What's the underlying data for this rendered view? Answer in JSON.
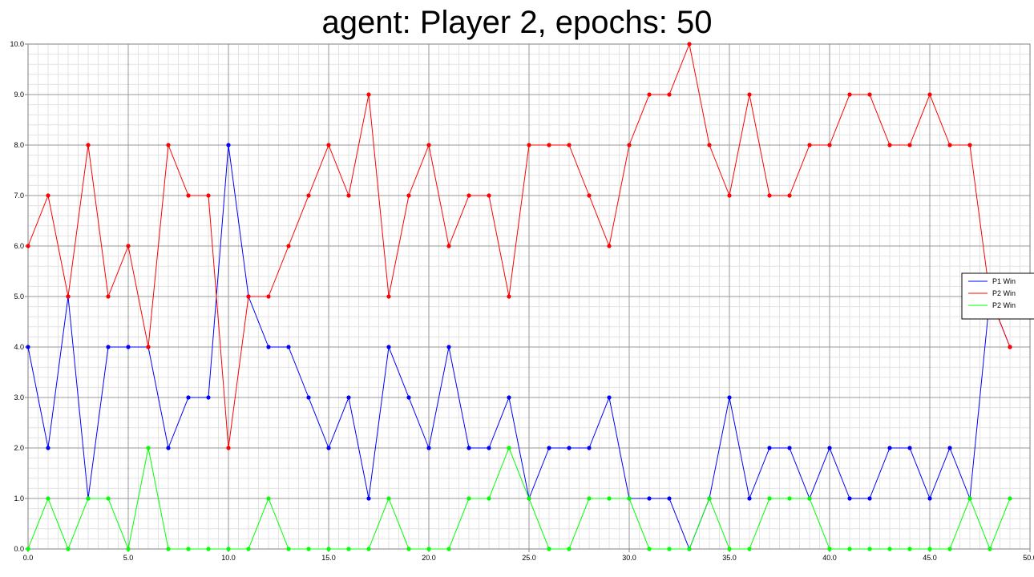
{
  "chart_data": {
    "type": "line",
    "title": "agent: Player 2, epochs: 50",
    "xlabel": "",
    "ylabel": "",
    "xlim": [
      0,
      50
    ],
    "ylim": [
      0,
      10
    ],
    "x_ticks": [
      "0.0",
      "5.0",
      "10.0",
      "15.0",
      "20.0",
      "25.0",
      "30.0",
      "35.0",
      "40.0",
      "45.0",
      "50.0"
    ],
    "y_ticks": [
      "0.0",
      "1.0",
      "2.0",
      "3.0",
      "4.0",
      "5.0",
      "6.0",
      "7.0",
      "8.0",
      "9.0",
      "10.0"
    ],
    "grid": true,
    "legend_position": "right",
    "x": [
      0,
      1,
      2,
      3,
      4,
      5,
      6,
      7,
      8,
      9,
      10,
      11,
      12,
      13,
      14,
      15,
      16,
      17,
      18,
      19,
      20,
      21,
      22,
      23,
      24,
      25,
      26,
      27,
      28,
      29,
      30,
      31,
      32,
      33,
      34,
      35,
      36,
      37,
      38,
      39,
      40,
      41,
      42,
      43,
      44,
      45,
      46,
      47,
      48,
      49
    ],
    "series": [
      {
        "name": "P1 Win",
        "color": "#0000ff",
        "values": [
          4,
          2,
          5,
          1,
          4,
          4,
          4,
          2,
          3,
          3,
          8,
          5,
          4,
          4,
          3,
          2,
          3,
          1,
          4,
          3,
          2,
          4,
          2,
          2,
          3,
          1,
          2,
          2,
          2,
          3,
          1,
          1,
          1,
          0,
          1,
          3,
          1,
          2,
          2,
          1,
          2,
          1,
          1,
          2,
          2,
          1,
          2,
          1,
          5,
          4
        ]
      },
      {
        "name": "P2 Win",
        "color": "#ff0000",
        "values": [
          6,
          7,
          5,
          8,
          5,
          6,
          4,
          8,
          7,
          7,
          2,
          5,
          5,
          6,
          7,
          8,
          7,
          9,
          5,
          7,
          8,
          6,
          7,
          7,
          5,
          8,
          8,
          8,
          7,
          6,
          8,
          9,
          9,
          10,
          8,
          7,
          9,
          7,
          7,
          8,
          8,
          9,
          9,
          8,
          8,
          9,
          8,
          8,
          5,
          4
        ]
      },
      {
        "name": "P2 Win",
        "color": "#00ff00",
        "values": [
          0,
          1,
          0,
          1,
          1,
          0,
          2,
          0,
          0,
          0,
          0,
          0,
          1,
          0,
          0,
          0,
          0,
          0,
          1,
          0,
          0,
          0,
          1,
          1,
          2,
          1,
          0,
          0,
          1,
          1,
          1,
          0,
          0,
          0,
          1,
          0,
          0,
          1,
          1,
          1,
          0,
          0,
          0,
          0,
          0,
          0,
          0,
          1,
          0,
          1
        ]
      }
    ]
  }
}
